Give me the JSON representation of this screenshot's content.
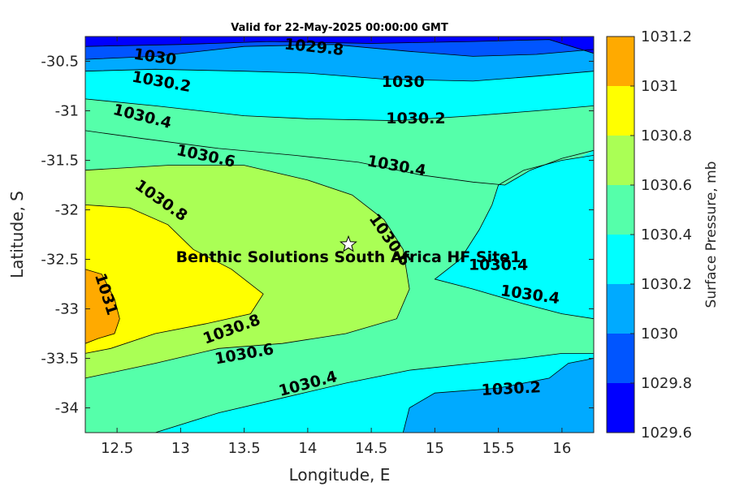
{
  "chart_data": {
    "type": "contour",
    "title": "Valid for 22-May-2025 00:00:00 GMT",
    "xlabel": "Longitude, E",
    "ylabel": "Latitude, S",
    "xlim": [
      12.25,
      16.25
    ],
    "ylim": [
      -34.25,
      -30.25
    ],
    "x_ticks": [
      12.5,
      13,
      13.5,
      14,
      14.5,
      15,
      15.5,
      16
    ],
    "x_tick_labels": [
      "12.5",
      "13",
      "13.5",
      "14",
      "14.5",
      "15",
      "15.5",
      "16"
    ],
    "y_ticks": [
      -30.5,
      -31,
      -31.5,
      -32,
      -32.5,
      -33,
      -33.5,
      -34
    ],
    "y_tick_labels": [
      "-30.5",
      "-31",
      "-31.5",
      "-32",
      "-32.5",
      "-33",
      "-33.5",
      "-34"
    ],
    "colorbar": {
      "label": "Surface Pressure, mb",
      "levels": [
        1029.6,
        1029.8,
        1030,
        1030.2,
        1030.4,
        1030.6,
        1030.8,
        1031,
        1031.2
      ],
      "level_labels": [
        "1029.6",
        "1029.8",
        "1030",
        "1030.2",
        "1030.4",
        "1030.6",
        "1030.8",
        "1031",
        "1031.2"
      ],
      "colors": [
        "#0000ff",
        "#0055ff",
        "#00aaff",
        "#00ffff",
        "#55ffaa",
        "#aaff55",
        "#ffff00",
        "#ffaa00",
        "#ff5500"
      ]
    },
    "contour_labels": [
      {
        "text": "1029.8",
        "x": 14.05,
        "y": -30.35,
        "angle": 6
      },
      {
        "text": "1030",
        "x": 12.8,
        "y": -30.45,
        "angle": 8
      },
      {
        "text": "1030",
        "x": 14.75,
        "y": -30.7,
        "angle": 0
      },
      {
        "text": "1030.2",
        "x": 12.85,
        "y": -30.7,
        "angle": 10
      },
      {
        "text": "1030.2",
        "x": 14.85,
        "y": -31.07,
        "angle": 0
      },
      {
        "text": "1030.4",
        "x": 12.7,
        "y": -31.05,
        "angle": 14
      },
      {
        "text": "1030.4",
        "x": 14.7,
        "y": -31.55,
        "angle": 10
      },
      {
        "text": "1030.6",
        "x": 13.2,
        "y": -31.45,
        "angle": 12
      },
      {
        "text": "1030.8",
        "x": 12.85,
        "y": -31.9,
        "angle": 35
      },
      {
        "text": "1030.6",
        "x": 14.65,
        "y": -32.3,
        "angle": 55
      },
      {
        "text": "1030.4",
        "x": 15.5,
        "y": -32.55,
        "angle": 0
      },
      {
        "text": "1030.4",
        "x": 15.75,
        "y": -32.85,
        "angle": 8
      },
      {
        "text": "1031",
        "x": 12.42,
        "y": -32.85,
        "angle": 72
      },
      {
        "text": "1030.8",
        "x": 13.4,
        "y": -33.2,
        "angle": -20
      },
      {
        "text": "1030.6",
        "x": 13.5,
        "y": -33.45,
        "angle": -10
      },
      {
        "text": "1030.4",
        "x": 14.0,
        "y": -33.75,
        "angle": -15
      },
      {
        "text": "1030.2",
        "x": 15.6,
        "y": -33.8,
        "angle": -3
      }
    ],
    "markers": [
      {
        "type": "star",
        "x": 14.32,
        "y": -32.35,
        "label": "Benthic Solutions South Africa HF Site1"
      }
    ]
  }
}
